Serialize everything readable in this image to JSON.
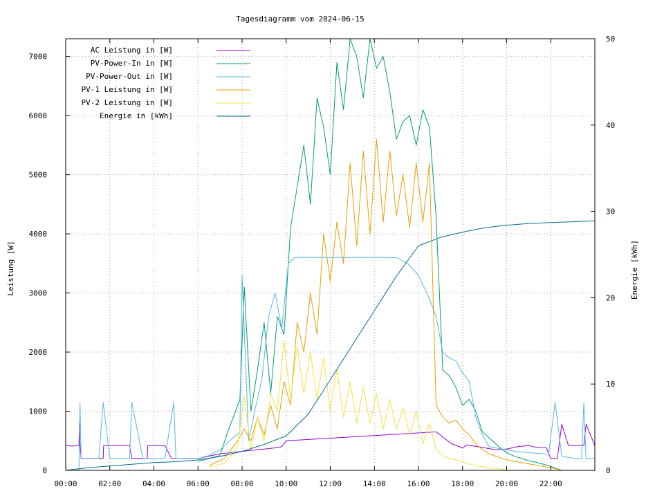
{
  "chart_data": {
    "type": "line",
    "title": "Tagesdiagramm vom 2024-06-15",
    "xlabel": "",
    "ylabel": "Leistung [W]",
    "y2label": "Energie [kWh]",
    "xlim": [
      0,
      24
    ],
    "ylim": [
      0,
      7300
    ],
    "y2lim": [
      0,
      50
    ],
    "x_ticks": [
      0,
      2,
      4,
      6,
      8,
      10,
      12,
      14,
      16,
      18,
      20,
      22
    ],
    "x_tick_labels": [
      "00:00",
      "02:00",
      "04:00",
      "06:00",
      "08:00",
      "10:00",
      "12:00",
      "14:00",
      "16:00",
      "18:00",
      "20:00",
      "22:00"
    ],
    "y_ticks": [
      0,
      1000,
      2000,
      3000,
      4000,
      5000,
      6000,
      7000
    ],
    "y_tick_labels": [
      "0",
      "1000",
      "2000",
      "3000",
      "4000",
      "5000",
      "6000",
      "7000"
    ],
    "y2_ticks": [
      0,
      10,
      20,
      30,
      40,
      50
    ],
    "y2_tick_labels": [
      "0",
      "10",
      "20",
      "30",
      "40",
      "50"
    ],
    "grid": true,
    "legend_position": "top-left",
    "series": [
      {
        "name": "AC Leistung in [W]",
        "color": "#9400d3",
        "axis": "y1",
        "x": [
          0,
          0.3,
          0.5,
          0.6,
          0.62,
          0.65,
          0.7,
          1.0,
          1.5,
          1.7,
          1.72,
          2.0,
          2.5,
          2.9,
          3.0,
          3.3,
          3.7,
          3.72,
          4.0,
          4.5,
          4.8,
          5.5,
          6.0,
          7.0,
          7.5,
          8.0,
          8.5,
          9.0,
          9.5,
          9.8,
          10.0,
          16.8,
          17.5,
          18.0,
          18.2,
          19.0,
          19.5,
          20.0,
          20.5,
          21.0,
          21.2,
          21.5,
          21.8,
          22.0,
          22.3,
          22.5,
          22.8,
          23.2,
          23.5,
          23.6,
          24.0
        ],
        "y": [
          420,
          410,
          420,
          420,
          800,
          420,
          200,
          200,
          200,
          200,
          420,
          420,
          420,
          420,
          200,
          200,
          200,
          420,
          420,
          420,
          200,
          200,
          200,
          280,
          300,
          320,
          340,
          360,
          380,
          400,
          500,
          650,
          450,
          380,
          430,
          380,
          350,
          360,
          400,
          420,
          400,
          380,
          380,
          200,
          200,
          780,
          420,
          420,
          420,
          780,
          420
        ]
      },
      {
        "name": "PV-Power-In in [W]",
        "color": "#009e73",
        "axis": "y1",
        "x": [
          6.0,
          7.0,
          7.3,
          7.6,
          7.9,
          8.1,
          8.4,
          8.7,
          9.0,
          9.3,
          9.6,
          9.9,
          10.2,
          10.5,
          10.8,
          11.1,
          11.4,
          11.7,
          12.0,
          12.3,
          12.6,
          12.9,
          13.2,
          13.5,
          13.8,
          14.1,
          14.4,
          14.7,
          15.0,
          15.3,
          15.6,
          15.9,
          16.2,
          16.5,
          16.8,
          17.1,
          17.4,
          17.7,
          18.0,
          18.3,
          18.6,
          18.9,
          19.2,
          19.5,
          19.8,
          20.1,
          20.4,
          20.7,
          21.0,
          21.3,
          21.6,
          21.9,
          22.2,
          22.5
        ],
        "y": [
          150,
          250,
          600,
          900,
          1200,
          3100,
          1000,
          1700,
          2500,
          1300,
          2600,
          2300,
          4100,
          4800,
          5500,
          4500,
          6300,
          5800,
          5000,
          6900,
          6100,
          7300,
          7000,
          6300,
          7300,
          6800,
          7000,
          6400,
          5600,
          5900,
          6000,
          5500,
          6100,
          5800,
          4300,
          1700,
          1600,
          1400,
          1100,
          1200,
          1000,
          650,
          550,
          450,
          350,
          280,
          230,
          200,
          160,
          140,
          110,
          80,
          40,
          0
        ]
      },
      {
        "name": "PV-Power-Out in [W]",
        "color": "#56b4e9",
        "axis": "y1",
        "x": [
          0.0,
          0.6,
          0.65,
          0.7,
          1.0,
          1.5,
          1.7,
          2.0,
          2.5,
          2.9,
          3.0,
          3.5,
          3.8,
          4.0,
          4.5,
          4.9,
          5.0,
          5.5,
          6.0,
          6.5,
          7.0,
          7.3,
          7.6,
          7.9,
          8.0,
          8.3,
          8.6,
          8.9,
          9.2,
          9.5,
          9.8,
          10.1,
          10.4,
          10.7,
          11.0,
          11.3,
          11.6,
          12.0,
          14.0,
          15.0,
          15.5,
          16.0,
          16.5,
          16.8,
          17.1,
          17.4,
          17.7,
          18.0,
          18.3,
          18.6,
          18.9,
          19.2,
          19.5,
          19.8,
          20.1,
          20.4,
          20.7,
          21.0,
          21.3,
          21.6,
          21.9,
          22.2,
          22.5,
          22.8,
          23.1,
          23.4,
          23.5,
          23.6,
          24.0
        ],
        "y": [
          0,
          0,
          1150,
          200,
          200,
          200,
          1150,
          200,
          200,
          200,
          1150,
          200,
          200,
          200,
          200,
          1150,
          200,
          200,
          200,
          250,
          350,
          450,
          550,
          650,
          3300,
          500,
          1050,
          1550,
          2600,
          3000,
          2400,
          3500,
          3600,
          3600,
          3600,
          3600,
          3600,
          3600,
          3600,
          3600,
          3500,
          3300,
          2900,
          2600,
          2000,
          1900,
          1850,
          1650,
          1500,
          900,
          600,
          400,
          380,
          360,
          340,
          320,
          310,
          300,
          290,
          280,
          270,
          1150,
          240,
          220,
          200,
          200,
          1150,
          200,
          200
        ]
      },
      {
        "name": "PV-1 Leistung in [W]",
        "color": "#e69f00",
        "axis": "y1",
        "x": [
          6.5,
          7.2,
          7.5,
          7.8,
          8.1,
          8.4,
          8.7,
          9.0,
          9.3,
          9.6,
          9.9,
          10.2,
          10.5,
          10.8,
          11.1,
          11.4,
          11.7,
          12.0,
          12.3,
          12.6,
          12.9,
          13.2,
          13.5,
          13.8,
          14.1,
          14.4,
          14.7,
          15.0,
          15.3,
          15.6,
          15.9,
          16.2,
          16.5,
          16.8,
          17.1,
          17.4,
          17.7,
          18.0,
          18.3,
          18.6,
          18.9,
          19.2,
          19.5,
          19.8,
          20.1,
          20.4,
          20.7,
          21.0,
          21.3,
          21.6,
          21.9,
          22.2,
          22.5
        ],
        "y": [
          80,
          200,
          350,
          500,
          700,
          500,
          900,
          600,
          1100,
          700,
          1500,
          1100,
          2500,
          2000,
          3000,
          2300,
          4000,
          3200,
          4200,
          3500,
          5200,
          3800,
          5400,
          4000,
          5600,
          4200,
          5400,
          4300,
          5000,
          4100,
          5200,
          4200,
          5200,
          1100,
          900,
          800,
          850,
          700,
          600,
          450,
          350,
          280,
          240,
          200,
          170,
          150,
          130,
          110,
          90,
          70,
          50,
          30,
          0
        ]
      },
      {
        "name": "PV-2 Leistung in [W]",
        "color": "#f0e442",
        "axis": "y1",
        "x": [
          6.5,
          7.2,
          7.5,
          7.8,
          8.1,
          8.4,
          8.7,
          9.0,
          9.3,
          9.6,
          9.9,
          10.2,
          10.5,
          10.8,
          11.1,
          11.4,
          11.7,
          12.0,
          12.3,
          12.6,
          12.9,
          13.2,
          13.5,
          13.8,
          14.1,
          14.4,
          14.7,
          15.0,
          15.3,
          15.6,
          15.9,
          16.2,
          16.5,
          16.8,
          17.1,
          17.4,
          17.7,
          18.0,
          18.3,
          18.6,
          18.9,
          19.2,
          19.5,
          19.8,
          20.1
        ],
        "y": [
          50,
          120,
          250,
          400,
          1250,
          350,
          900,
          500,
          1300,
          1000,
          2200,
          1200,
          2100,
          1300,
          2000,
          1200,
          1900,
          1000,
          1700,
          900,
          1500,
          800,
          1400,
          800,
          1300,
          700,
          1200,
          700,
          1050,
          600,
          1000,
          450,
          800,
          350,
          250,
          200,
          180,
          150,
          110,
          80,
          60,
          40,
          30,
          20,
          0
        ]
      },
      {
        "name": "Energie in [kWh]",
        "color": "#006b8f",
        "axis": "y2",
        "x": [
          0,
          1,
          2,
          3,
          4,
          5,
          6,
          7,
          8,
          9,
          10,
          11,
          12,
          13,
          14,
          15,
          16,
          17,
          18,
          19,
          20,
          21,
          22,
          23,
          24
        ],
        "y": [
          0.0,
          0.3,
          0.5,
          0.7,
          0.9,
          1.0,
          1.2,
          1.6,
          2.2,
          3.0,
          4.0,
          6.5,
          10.5,
          14.5,
          18.5,
          22.5,
          26.0,
          27.0,
          27.6,
          28.1,
          28.4,
          28.6,
          28.7,
          28.8,
          28.9
        ]
      }
    ]
  }
}
